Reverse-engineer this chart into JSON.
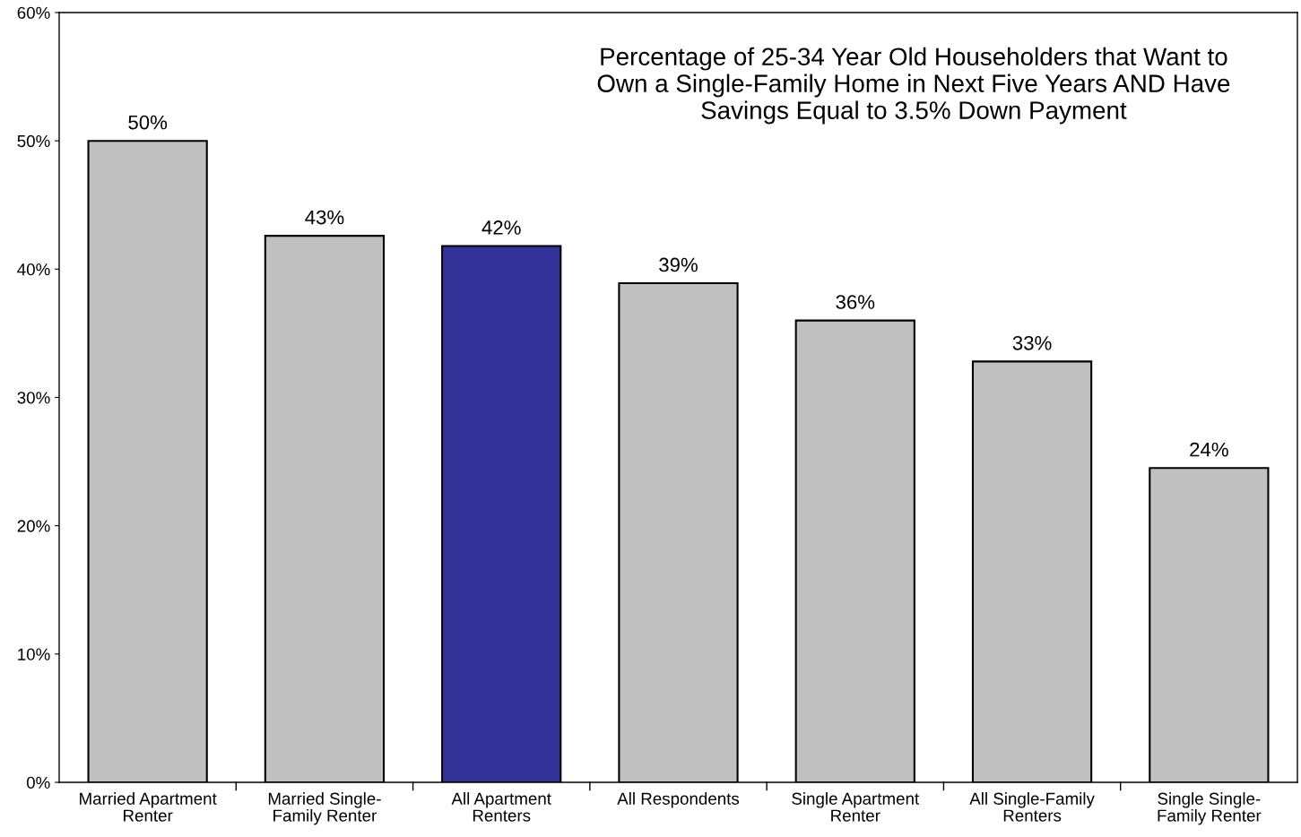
{
  "chart_data": {
    "type": "bar",
    "title": "Percentage of 25-34 Year Old Householders that Want to\nOwn a Single-Family Home in Next Five Years AND Have\nSavings Equal to 3.5% Down Payment",
    "categories": [
      "Married Apartment\nRenter",
      "Married Single-\nFamily Renter",
      "All Apartment\nRenters",
      "All Respondents",
      "Single Apartment\nRenter",
      "All Single-Family\nRenters",
      "Single Single-\nFamily Renter"
    ],
    "values": [
      50.0,
      42.6,
      41.8,
      38.9,
      36.0,
      32.8,
      24.5
    ],
    "colors": [
      "#c0c0c0",
      "#c0c0c0",
      "#333399",
      "#c0c0c0",
      "#c0c0c0",
      "#c0c0c0",
      "#c0c0c0"
    ],
    "value_labels": [
      "50%",
      "43%",
      "42%",
      "39%",
      "36%",
      "33%",
      "24%"
    ],
    "ylim": [
      0,
      60
    ],
    "yticks": [
      {
        "value": 0,
        "label": "0%"
      },
      {
        "value": 10,
        "label": "10%"
      },
      {
        "value": 20,
        "label": "20%"
      },
      {
        "value": 30,
        "label": "30%"
      },
      {
        "value": 40,
        "label": "40%"
      },
      {
        "value": 50,
        "label": "50%"
      },
      {
        "value": 60,
        "label": "60%"
      }
    ],
    "grid": false
  }
}
